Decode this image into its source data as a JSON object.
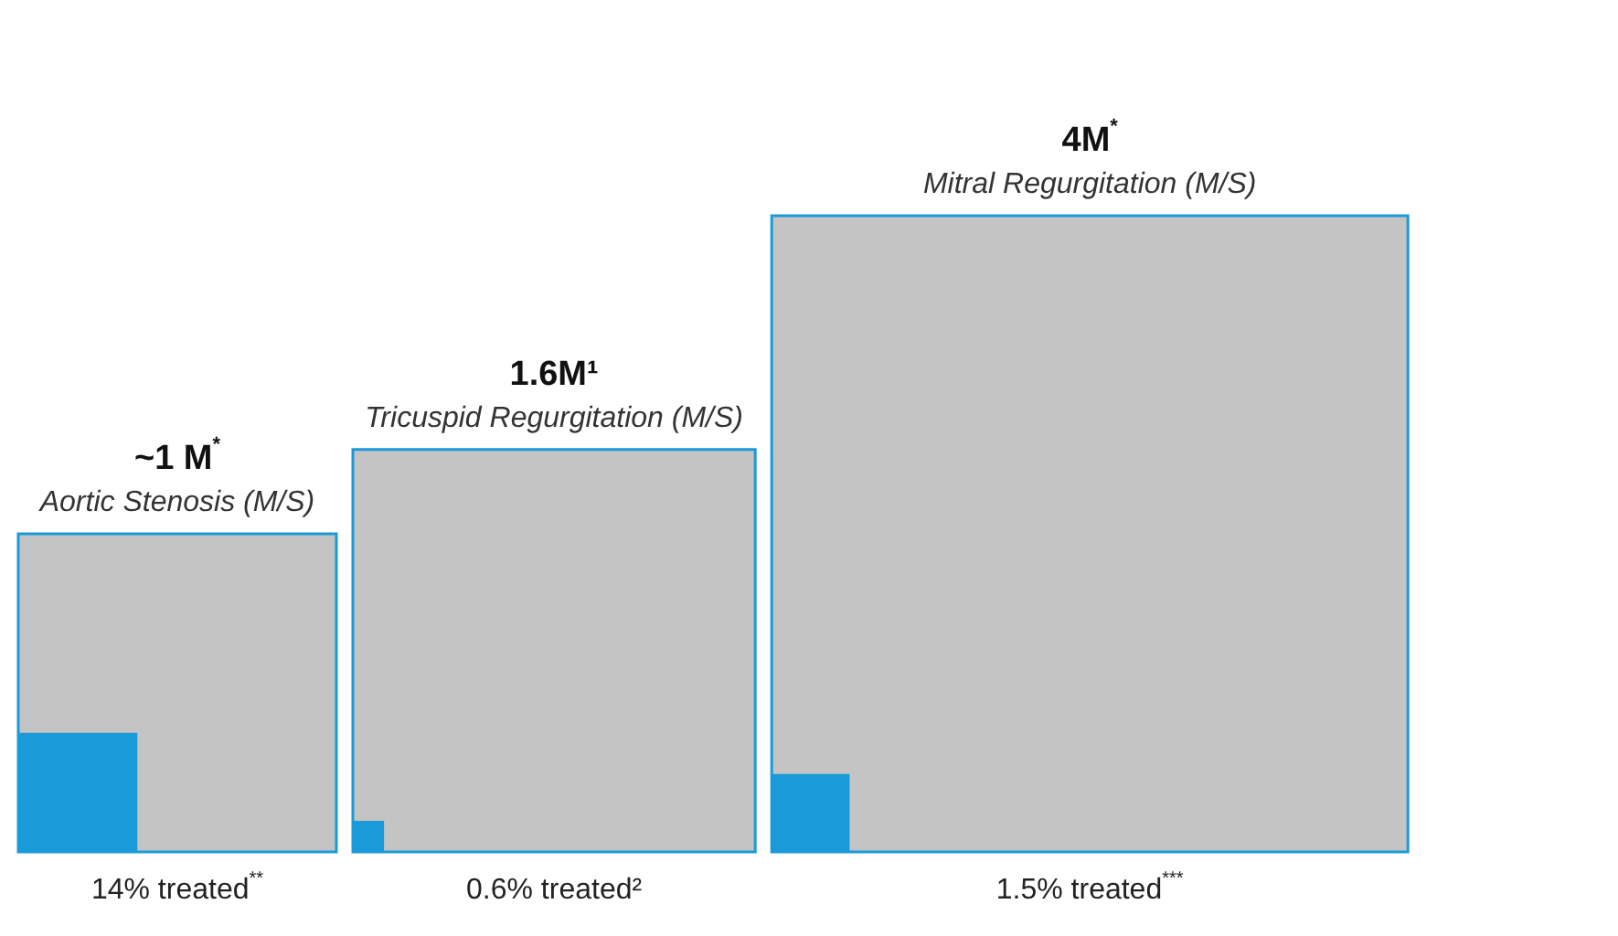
{
  "chart_data": {
    "type": "other",
    "categories": [
      "Aortic Stenosis (M/S)",
      "Tricuspid Regurgitation (M/S)",
      "Mitral Regurgitation (M/S)"
    ],
    "series": [
      {
        "color": "#c4c4c4",
        "values": [
          1,
          1.6,
          4
        ],
        "value_labels": [
          "~1 M$^{*}$",
          "1.6M¹",
          "4M$^{*}$"
        ]
      },
      {
        "color": "#1a9ad8",
        "values": [
          14,
          0.6,
          1.5
        ],
        "value_labels": [
          "14% treated$^{**}$",
          "0.6% treated²",
          "1.5% treated$^{***}$"
        ]
      }
    ]
  }
}
